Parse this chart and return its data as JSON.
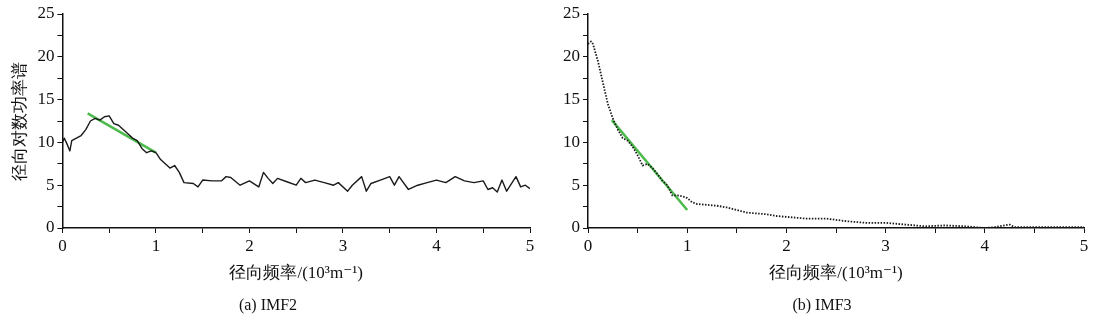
{
  "chart_data": [
    {
      "type": "line",
      "title": "(a) IMF2",
      "xlabel": "径向频率/(10³m⁻¹)",
      "ylabel": "径向对数功率谱",
      "xlim": [
        0,
        5
      ],
      "ylim": [
        0,
        25
      ],
      "xticks": [
        0,
        {
          "value": 0.5,
          "label": null
        },
        1,
        {
          "value": 1.5,
          "label": null
        },
        2,
        {
          "value": 2.5,
          "label": null
        },
        3,
        {
          "value": 3.5,
          "label": null
        },
        4,
        {
          "value": 4.5,
          "label": null
        },
        5
      ],
      "yticks": [
        0,
        {
          "value": 2.5,
          "label": null
        },
        5,
        {
          "value": 7.5,
          "label": null
        },
        10,
        {
          "value": 12.5,
          "label": null
        },
        15,
        {
          "value": 17.5,
          "label": null
        },
        20,
        {
          "value": 22.5,
          "label": null
        },
        25
      ],
      "grid": false,
      "legend": false,
      "marker": "none",
      "series": [
        {
          "color": "#1a1a1a",
          "line_style": "solid",
          "x": [
            0,
            0.02,
            0.05,
            0.08,
            0.1,
            0.15,
            0.2,
            0.25,
            0.3,
            0.35,
            0.4,
            0.45,
            0.5,
            0.55,
            0.6,
            0.65,
            0.7,
            0.75,
            0.8,
            0.85,
            0.9,
            0.95,
            1.0,
            1.05,
            1.1,
            1.15,
            1.2,
            1.25,
            1.3,
            1.4,
            1.45,
            1.5,
            1.6,
            1.7,
            1.75,
            1.8,
            1.9,
            2.0,
            2.1,
            2.15,
            2.2,
            2.25,
            2.3,
            2.4,
            2.5,
            2.55,
            2.6,
            2.7,
            2.8,
            2.9,
            2.95,
            3.05,
            3.1,
            3.2,
            3.25,
            3.3,
            3.4,
            3.5,
            3.55,
            3.6,
            3.7,
            3.8,
            3.9,
            4.0,
            4.1,
            4.2,
            4.3,
            4.4,
            4.5,
            4.55,
            4.6,
            4.65,
            4.7,
            4.75,
            4.85,
            4.9,
            4.95,
            5.0
          ],
          "values": [
            10,
            10.5,
            9.8,
            9,
            10.2,
            10.5,
            10.8,
            11.5,
            12.5,
            12.8,
            12.6,
            13.0,
            13.1,
            12.2,
            12.0,
            11.5,
            11.0,
            10.5,
            10.2,
            9.3,
            8.8,
            9.0,
            8.8,
            8.0,
            7.5,
            7.0,
            7.3,
            6.5,
            5.3,
            5.2,
            4.8,
            5.6,
            5.5,
            5.5,
            6.0,
            5.9,
            5.0,
            5.5,
            4.8,
            6.5,
            5.8,
            5.2,
            5.8,
            5.4,
            5.0,
            5.8,
            5.3,
            5.6,
            5.3,
            5.0,
            5.3,
            4.3,
            5.0,
            6.0,
            4.3,
            5.2,
            5.6,
            6.0,
            5.0,
            6.0,
            4.5,
            5.0,
            5.3,
            5.6,
            5.3,
            6.0,
            5.5,
            5.3,
            5.5,
            4.5,
            4.7,
            4.2,
            5.6,
            4.3,
            6.0,
            4.8,
            5.0,
            4.6
          ]
        },
        {
          "color": "#4cbb4c",
          "line_style": "solid",
          "x": [
            0.27,
            1.0
          ],
          "values": [
            13.4,
            8.8
          ]
        }
      ]
    },
    {
      "type": "line",
      "title": "(b) IMF3",
      "xlabel": "径向频率/(10³m⁻¹)",
      "xlim": [
        0,
        5
      ],
      "ylim": [
        0,
        25
      ],
      "xticks": [
        0,
        {
          "value": 0.5,
          "label": null
        },
        1,
        {
          "value": 1.5,
          "label": null
        },
        2,
        {
          "value": 2.5,
          "label": null
        },
        3,
        {
          "value": 3.5,
          "label": null
        },
        4,
        {
          "value": 4.5,
          "label": null
        },
        5
      ],
      "yticks": [
        0,
        {
          "value": 2.5,
          "label": null
        },
        5,
        {
          "value": 7.5,
          "label": null
        },
        10,
        {
          "value": 12.5,
          "label": null
        },
        15,
        {
          "value": 17.5,
          "label": null
        },
        20,
        {
          "value": 22.5,
          "label": null
        },
        25
      ],
      "grid": false,
      "legend": false,
      "marker": "none",
      "series": [
        {
          "color": "#1a1a1a",
          "line_style": "dotted",
          "x": [
            0,
            0.03,
            0.05,
            0.1,
            0.15,
            0.2,
            0.25,
            0.3,
            0.35,
            0.4,
            0.45,
            0.5,
            0.55,
            0.6,
            0.65,
            0.7,
            0.75,
            0.8,
            0.85,
            0.9,
            0.95,
            1.0,
            1.05,
            1.1,
            1.2,
            1.3,
            1.4,
            1.5,
            1.6,
            1.7,
            1.8,
            1.9,
            2.0,
            2.2,
            2.4,
            2.6,
            2.8,
            3.0,
            3.2,
            3.4,
            3.6,
            3.8,
            4.0,
            4.1,
            4.2,
            4.25,
            4.3,
            4.5,
            4.8,
            5.0
          ],
          "values": [
            21.5,
            21.8,
            21.5,
            19.5,
            17,
            14.5,
            12.8,
            11.5,
            10.5,
            10.2,
            9.5,
            8.5,
            7.3,
            7.5,
            7.0,
            6.3,
            5.5,
            5.0,
            3.8,
            3.8,
            3.7,
            3.5,
            3.0,
            2.8,
            2.7,
            2.6,
            2.4,
            2.1,
            1.8,
            1.7,
            1.6,
            1.4,
            1.3,
            1.1,
            1.1,
            0.8,
            0.6,
            0.6,
            0.4,
            0.2,
            0.3,
            0.2,
            0.0,
            0.1,
            0.3,
            0.4,
            0.1,
            0.1,
            0.1,
            0.1
          ]
        },
        {
          "color": "#4cbb4c",
          "line_style": "solid",
          "x": [
            0.24,
            1.0
          ],
          "values": [
            12.6,
            2.1
          ]
        }
      ]
    }
  ]
}
